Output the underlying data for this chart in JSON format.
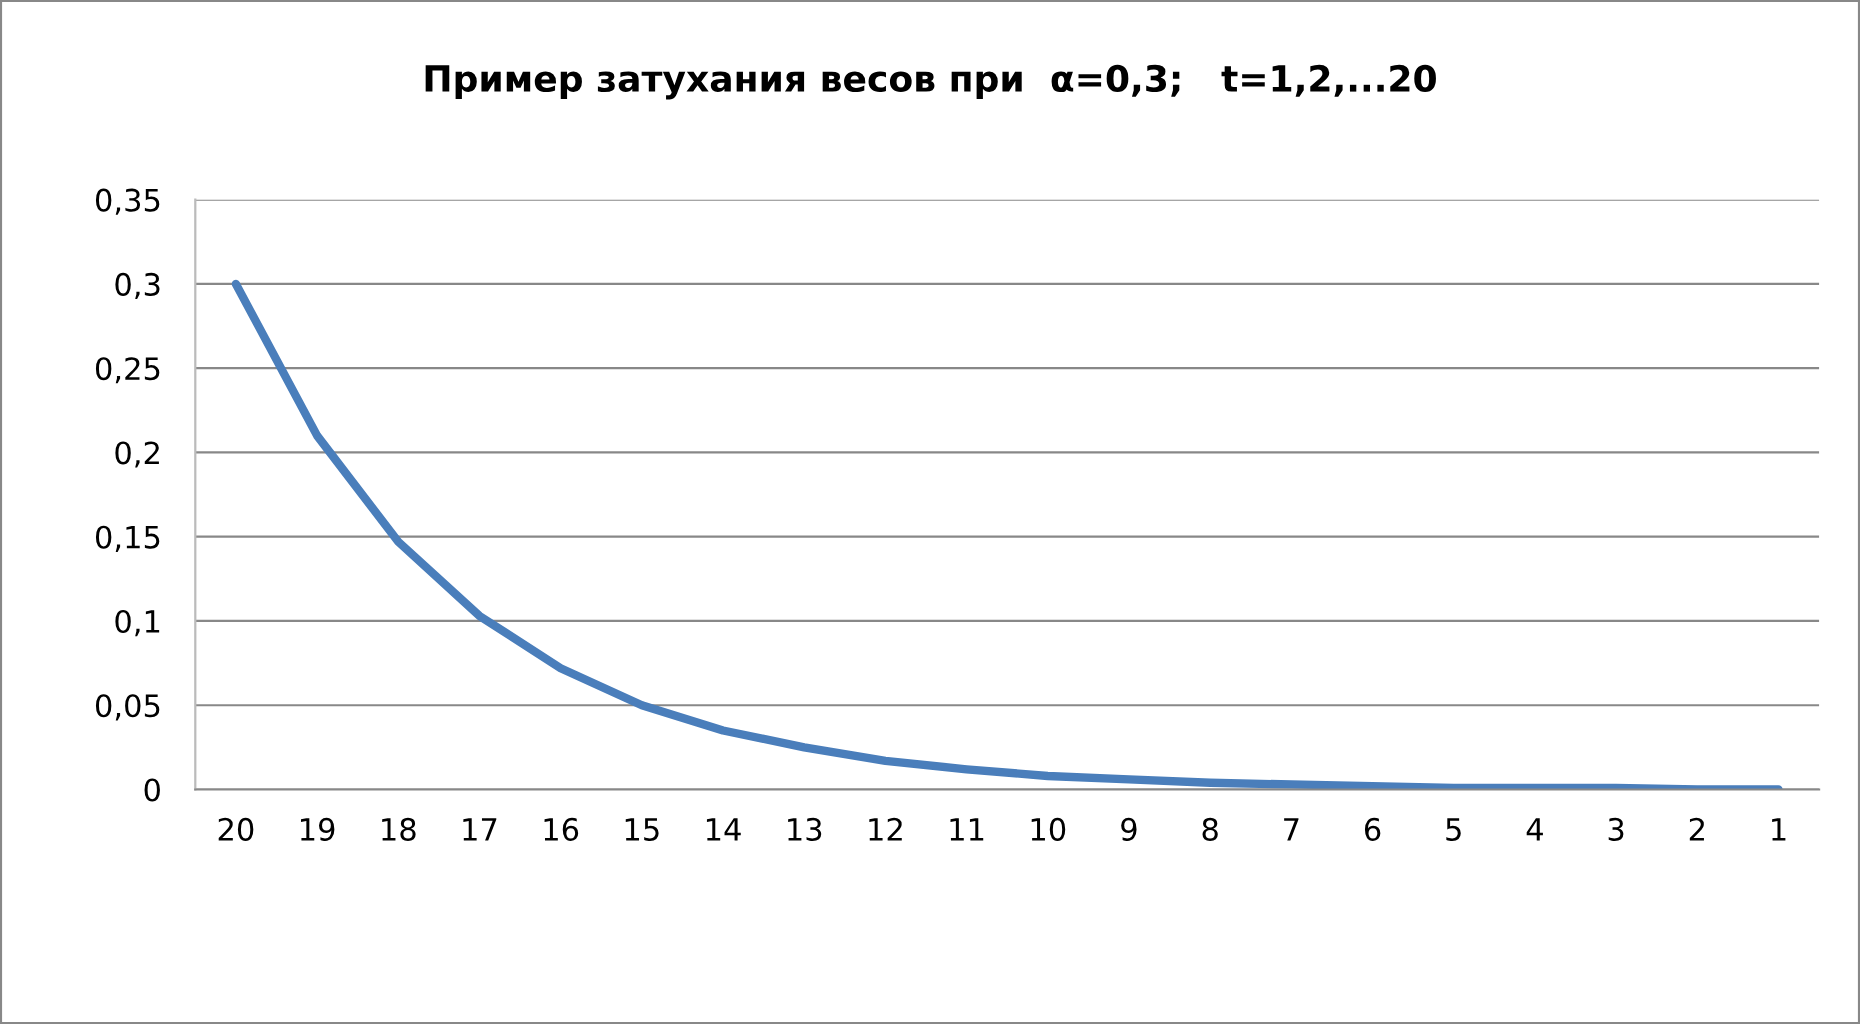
{
  "chart_data": {
    "type": "line",
    "title": "Пример затухания весов при  α=0,3;   t=1,2,...20",
    "categories": [
      "20",
      "19",
      "18",
      "17",
      "16",
      "15",
      "14",
      "13",
      "12",
      "11",
      "10",
      "9",
      "8",
      "7",
      "6",
      "5",
      "4",
      "3",
      "2",
      "1"
    ],
    "series": [
      {
        "color": "#4a7ebb",
        "values": [
          0.3,
          0.21,
          0.147,
          0.103,
          0.072,
          0.05,
          0.035,
          0.025,
          0.017,
          0.012,
          0.008,
          0.006,
          0.004,
          0.003,
          0.002,
          0.001,
          0.001,
          0.001,
          0,
          0
        ]
      }
    ],
    "ylim": [
      0,
      0.35
    ],
    "yticks": [
      0,
      {
        "value": 0.05,
        "label": "0,05"
      },
      {
        "value": 0.1,
        "label": "0,1"
      },
      {
        "value": 0.15,
        "label": "0,15"
      },
      {
        "value": 0.2,
        "label": "0,2"
      },
      {
        "value": 0.25,
        "label": "0,25"
      },
      {
        "value": 0.3,
        "label": "0,3"
      },
      {
        "value": 0.35,
        "label": "0,35"
      }
    ],
    "grid": "y",
    "marker": "none",
    "line_style": "solid"
  }
}
